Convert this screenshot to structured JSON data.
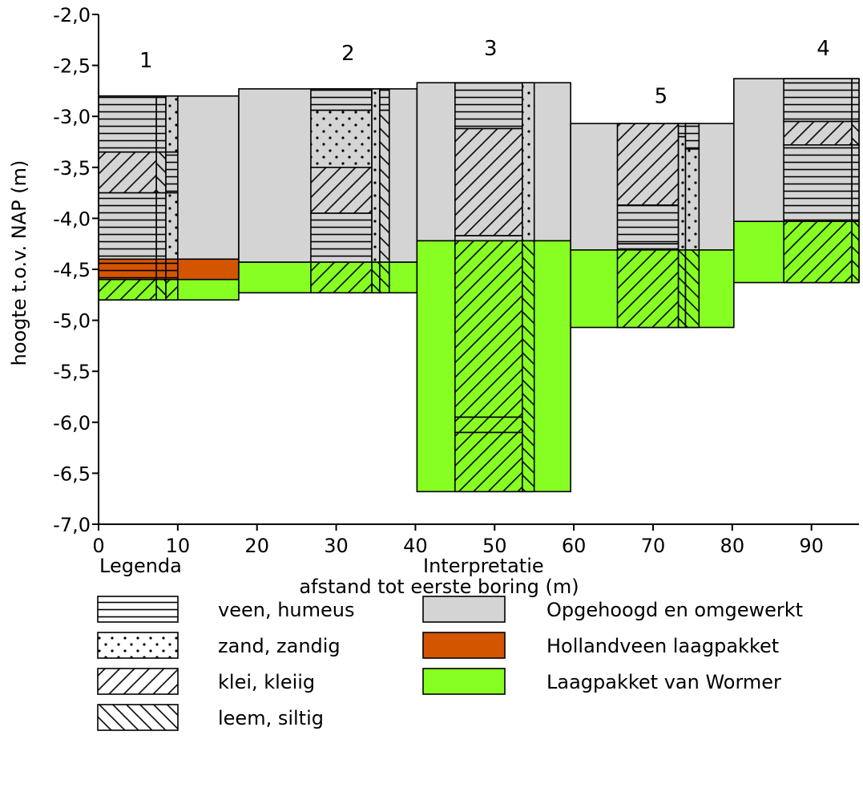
{
  "chart_data": {
    "type": "cross-section",
    "title": "",
    "xlabel": "afstand tot eerste boring (m)",
    "ylabel": "hoogte t.o.v. NAP (m)",
    "xlim": [
      0,
      96
    ],
    "ylim": [
      -7.0,
      -2.0
    ],
    "x_ticks": [
      0,
      10,
      20,
      30,
      40,
      50,
      60,
      70,
      80,
      90
    ],
    "x_tick_labels": [
      "0",
      "10",
      "20",
      "30",
      "40",
      "50",
      "60",
      "70",
      "80",
      "90"
    ],
    "y_ticks": [
      -2.0,
      -2.5,
      -3.0,
      -3.5,
      -4.0,
      -4.5,
      -5.0,
      -5.5,
      -6.0,
      -6.5,
      -7.0
    ],
    "y_tick_labels": [
      "-2,0",
      "-2,5",
      "-3,0",
      "-3,5",
      "-4,0",
      "-4,5",
      "-5,0",
      "-5,5",
      "-6,0",
      "-6,5",
      "-7,0"
    ],
    "interpretation_colors": {
      "opgehoogd": "#d4d4d4",
      "hollandveen": "#d45500",
      "wormer": "#88ff22"
    },
    "interpretation": [
      {
        "x": [
          0,
          17.7
        ],
        "layers": [
          {
            "unit": "opgehoogd",
            "top": -2.8,
            "bottom": -4.4
          },
          {
            "unit": "hollandveen",
            "top": -4.4,
            "bottom": -4.6
          },
          {
            "unit": "wormer",
            "top": -4.6,
            "bottom": -4.8
          }
        ]
      },
      {
        "x": [
          17.7,
          40.2
        ],
        "layers": [
          {
            "unit": "opgehoogd",
            "top": -2.73,
            "bottom": -4.43
          },
          {
            "unit": "wormer",
            "top": -4.43,
            "bottom": -4.73
          }
        ]
      },
      {
        "x": [
          40.2,
          59.6
        ],
        "layers": [
          {
            "unit": "opgehoogd",
            "top": -2.67,
            "bottom": -4.22
          },
          {
            "unit": "wormer",
            "top": -4.22,
            "bottom": -6.68
          }
        ]
      },
      {
        "x": [
          59.6,
          80.2
        ],
        "layers": [
          {
            "unit": "opgehoogd",
            "top": -3.07,
            "bottom": -4.31
          },
          {
            "unit": "wormer",
            "top": -4.31,
            "bottom": -5.07
          }
        ]
      },
      {
        "x": [
          80.2,
          96
        ],
        "layers": [
          {
            "unit": "opgehoogd",
            "top": -2.63,
            "bottom": -4.03
          },
          {
            "unit": "wormer",
            "top": -4.03,
            "bottom": -4.63
          }
        ]
      }
    ],
    "borings": [
      {
        "label": "1",
        "label_x": 6,
        "label_y": -2.52,
        "x": [
          0,
          10
        ],
        "columns": [
          {
            "x": [
              0,
              7.3
            ],
            "layers": [
              {
                "litho": "veen",
                "top": -2.8,
                "bottom": -3.35,
                "unit": "opgehoogd"
              },
              {
                "litho": "klei",
                "top": -3.35,
                "bottom": -3.75,
                "unit": "opgehoogd"
              },
              {
                "litho": "veen",
                "top": -3.75,
                "bottom": -4.4,
                "unit": "opgehoogd"
              },
              {
                "litho": "veen",
                "top": -4.4,
                "bottom": -4.6,
                "unit": "hollandveen"
              },
              {
                "litho": "klei",
                "top": -4.6,
                "bottom": -4.8,
                "unit": "wormer"
              }
            ]
          },
          {
            "x": [
              7.3,
              8.5
            ],
            "layers": [
              {
                "litho": "veen",
                "top": -2.8,
                "bottom": -3.35,
                "unit": "opgehoogd"
              },
              {
                "litho": "leem",
                "top": -3.35,
                "bottom": -3.75,
                "unit": "opgehoogd"
              },
              {
                "litho": "veen",
                "top": -3.75,
                "bottom": -4.4,
                "unit": "opgehoogd"
              },
              {
                "litho": "veen",
                "top": -4.4,
                "bottom": -4.6,
                "unit": "hollandveen"
              },
              {
                "litho": "leem",
                "top": -4.6,
                "bottom": -4.8,
                "unit": "wormer"
              }
            ]
          },
          {
            "x": [
              8.5,
              10
            ],
            "layers": [
              {
                "litho": "zand",
                "top": -2.8,
                "bottom": -3.35,
                "unit": "opgehoogd"
              },
              {
                "litho": "veen",
                "top": -3.35,
                "bottom": -3.75,
                "unit": "opgehoogd"
              },
              {
                "litho": "zand",
                "top": -3.75,
                "bottom": -4.4,
                "unit": "opgehoogd"
              },
              {
                "litho": "veen",
                "top": -4.4,
                "bottom": -4.6,
                "unit": "hollandveen"
              },
              {
                "litho": "klei",
                "top": -4.6,
                "bottom": -4.8,
                "unit": "wormer"
              }
            ]
          }
        ]
      },
      {
        "label": "2",
        "label_x": 31.5,
        "label_y": -2.45,
        "x": [
          26.8,
          36.7
        ],
        "columns": [
          {
            "x": [
              26.8,
              34.5
            ],
            "layers": [
              {
                "litho": "veen",
                "top": -2.73,
                "bottom": -2.94,
                "unit": "opgehoogd"
              },
              {
                "litho": "zand",
                "top": -2.94,
                "bottom": -3.5,
                "unit": "opgehoogd"
              },
              {
                "litho": "klei",
                "top": -3.5,
                "bottom": -3.95,
                "unit": "opgehoogd"
              },
              {
                "litho": "veen",
                "top": -3.95,
                "bottom": -4.43,
                "unit": "opgehoogd"
              },
              {
                "litho": "klei",
                "top": -4.43,
                "bottom": -4.73,
                "unit": "wormer"
              }
            ]
          },
          {
            "x": [
              34.5,
              35.5
            ],
            "layers": [
              {
                "litho": "zand",
                "top": -2.73,
                "bottom": -4.43,
                "unit": "opgehoogd"
              },
              {
                "litho": "leem",
                "top": -4.43,
                "bottom": -4.73,
                "unit": "wormer"
              }
            ]
          },
          {
            "x": [
              35.5,
              36.7
            ],
            "layers": [
              {
                "litho": "veen",
                "top": -2.73,
                "bottom": -2.94,
                "unit": "opgehoogd"
              },
              {
                "litho": "leem",
                "top": -2.94,
                "bottom": -4.43,
                "unit": "opgehoogd"
              },
              {
                "litho": "leem",
                "top": -4.43,
                "bottom": -4.73,
                "unit": "wormer"
              }
            ]
          }
        ]
      },
      {
        "label": "3",
        "label_x": 49.5,
        "label_y": -2.4,
        "x": [
          45,
          55
        ],
        "columns": [
          {
            "x": [
              45,
              53.5
            ],
            "layers": [
              {
                "litho": "veen",
                "top": -2.67,
                "bottom": -3.12,
                "unit": "opgehoogd"
              },
              {
                "litho": "klei",
                "top": -3.12,
                "bottom": -4.17,
                "unit": "opgehoogd"
              },
              {
                "litho": "veen",
                "top": -4.17,
                "bottom": -4.22,
                "unit": "opgehoogd"
              },
              {
                "litho": "klei",
                "top": -4.22,
                "bottom": -5.95,
                "unit": "wormer"
              },
              {
                "litho": "klei",
                "top": -5.95,
                "bottom": -6.1,
                "unit": "wormer"
              },
              {
                "litho": "klei",
                "top": -6.1,
                "bottom": -6.68,
                "unit": "wormer"
              }
            ]
          },
          {
            "x": [
              53.5,
              55
            ],
            "layers": [
              {
                "litho": "zand",
                "top": -2.67,
                "bottom": -4.22,
                "unit": "opgehoogd"
              },
              {
                "litho": "leem",
                "top": -4.22,
                "bottom": -6.68,
                "unit": "wormer"
              }
            ]
          }
        ]
      },
      {
        "label": "5",
        "label_x": 71,
        "label_y": -2.87,
        "x": [
          65.5,
          75.8
        ],
        "columns": [
          {
            "x": [
              65.5,
              73.2
            ],
            "layers": [
              {
                "litho": "klei",
                "top": -3.07,
                "bottom": -3.87,
                "unit": "opgehoogd"
              },
              {
                "litho": "veen",
                "top": -3.87,
                "bottom": -4.25,
                "unit": "opgehoogd"
              },
              {
                "litho": "veen",
                "top": -4.25,
                "bottom": -4.31,
                "unit": "opgehoogd"
              },
              {
                "litho": "klei",
                "top": -4.31,
                "bottom": -5.07,
                "unit": "wormer"
              }
            ]
          },
          {
            "x": [
              73.2,
              74.1
            ],
            "layers": [
              {
                "litho": "veen",
                "top": -3.07,
                "bottom": -3.2,
                "unit": "opgehoogd"
              },
              {
                "litho": "zand",
                "top": -3.2,
                "bottom": -4.31,
                "unit": "opgehoogd"
              },
              {
                "litho": "leem",
                "top": -4.31,
                "bottom": -5.07,
                "unit": "wormer"
              }
            ]
          },
          {
            "x": [
              74.1,
              75.8
            ],
            "layers": [
              {
                "litho": "veen",
                "top": -3.07,
                "bottom": -3.32,
                "unit": "opgehoogd"
              },
              {
                "litho": "zand",
                "top": -3.32,
                "bottom": -4.31,
                "unit": "opgehoogd"
              },
              {
                "litho": "leem",
                "top": -4.31,
                "bottom": -5.07,
                "unit": "wormer"
              }
            ]
          }
        ]
      },
      {
        "label": "4",
        "label_x": 91.5,
        "label_y": -2.4,
        "x": [
          86.5,
          96
        ],
        "columns": [
          {
            "x": [
              86.5,
              95.1
            ],
            "layers": [
              {
                "litho": "veen",
                "top": -2.63,
                "bottom": -3.05,
                "unit": "opgehoogd"
              },
              {
                "litho": "klei",
                "top": -3.05,
                "bottom": -3.28,
                "unit": "opgehoogd"
              },
              {
                "litho": "veen",
                "top": -3.28,
                "bottom": -4.03,
                "unit": "opgehoogd"
              },
              {
                "litho": "klei",
                "top": -4.03,
                "bottom": -4.63,
                "unit": "wormer"
              }
            ]
          },
          {
            "x": [
              95.1,
              96
            ],
            "layers": [
              {
                "litho": "veen",
                "top": -2.63,
                "bottom": -3.05,
                "unit": "opgehoogd"
              },
              {
                "litho": "leem",
                "top": -3.05,
                "bottom": -3.28,
                "unit": "opgehoogd"
              },
              {
                "litho": "veen",
                "top": -3.28,
                "bottom": -4.03,
                "unit": "opgehoogd"
              },
              {
                "litho": "leem",
                "top": -4.03,
                "bottom": -4.63,
                "unit": "wormer"
              }
            ]
          }
        ]
      }
    ]
  },
  "legend": {
    "litho_title": "Legenda",
    "litho_items": [
      {
        "pattern": "veen",
        "label": "veen, humeus"
      },
      {
        "pattern": "zand",
        "label": "zand, zandig"
      },
      {
        "pattern": "klei",
        "label": "klei, kleiig"
      },
      {
        "pattern": "leem",
        "label": "leem, siltig"
      }
    ],
    "interp_title": "Interpretatie",
    "interp_items": [
      {
        "unit": "opgehoogd",
        "color": "#d4d4d4",
        "label": "Opgehoogd en omgewerkt"
      },
      {
        "unit": "hollandveen",
        "color": "#d45500",
        "label": "Hollandveen laagpakket"
      },
      {
        "unit": "wormer",
        "color": "#88ff22",
        "label": "Laagpakket van Wormer"
      }
    ]
  }
}
